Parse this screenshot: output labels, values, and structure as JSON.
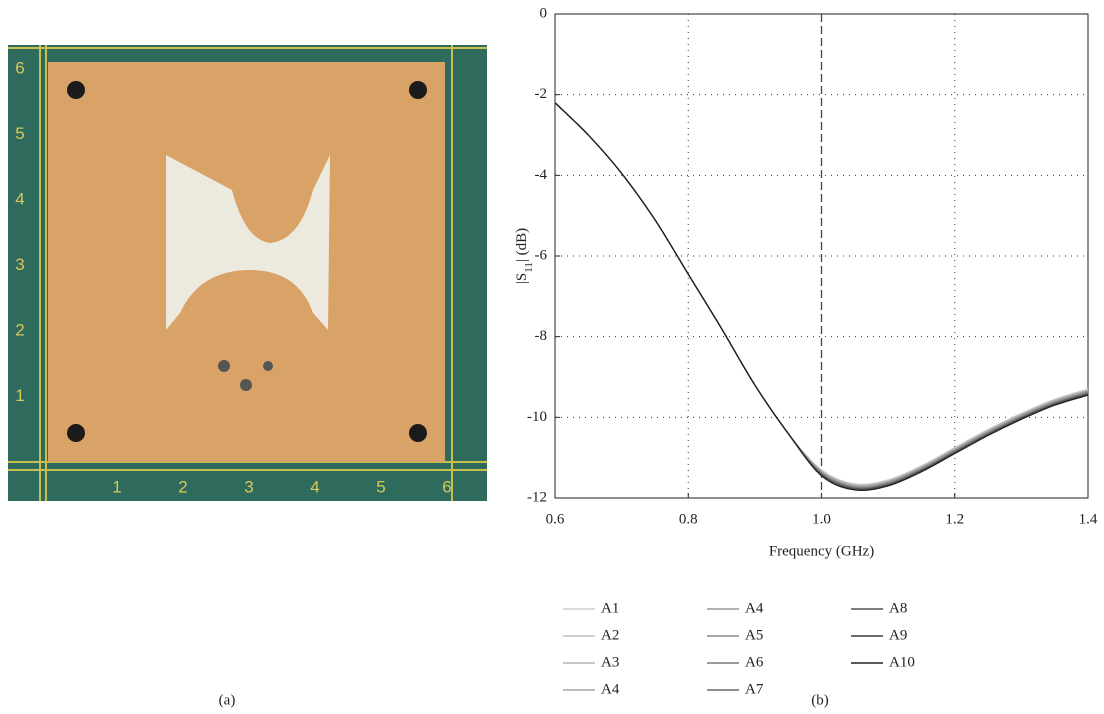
{
  "panel_a": {
    "caption": "(a)",
    "ruler_left": [
      "6",
      "5",
      "4",
      "3",
      "2",
      "1"
    ],
    "ruler_bottom": [
      "1",
      "2",
      "3",
      "4",
      "5",
      "6"
    ]
  },
  "chart_data": {
    "type": "line",
    "caption": "(b)",
    "xlabel": "Frequency (GHz)",
    "ylabel": [
      "|S",
      "11",
      "| (dB)"
    ],
    "x": [
      0.6,
      0.65,
      0.7,
      0.75,
      0.8,
      0.85,
      0.9,
      0.95,
      1.0,
      1.05,
      1.1,
      1.15,
      1.2,
      1.25,
      1.3,
      1.35,
      1.4
    ],
    "xlim": [
      0.6,
      1.4
    ],
    "ylim": [
      -12,
      0
    ],
    "xticks": [
      0.6,
      0.8,
      {
        "value": 1,
        "label": "1.0"
      },
      1.2,
      1.4
    ],
    "yticks": [
      0,
      -2,
      -4,
      -6,
      -8,
      -10,
      -12
    ],
    "grid": true,
    "vline": 1,
    "series": [
      {
        "name": "A1",
        "color": "#cfcfcf",
        "values": [
          -2.2,
          -3.0,
          -3.95,
          -5.1,
          -6.45,
          -7.8,
          -9.2,
          -10.4,
          -11.3,
          -11.65,
          -11.55,
          -11.2,
          -10.75,
          -10.3,
          -9.9,
          -9.55,
          -9.3
        ]
      },
      {
        "name": "A2",
        "color": "#c2c2c2",
        "values": [
          -2.2,
          -3.0,
          -3.95,
          -5.1,
          -6.45,
          -7.8,
          -9.2,
          -10.4,
          -11.32,
          -11.67,
          -11.57,
          -11.22,
          -10.77,
          -10.32,
          -9.92,
          -9.57,
          -9.32
        ]
      },
      {
        "name": "A3",
        "color": "#b4b4b4",
        "values": [
          -2.2,
          -3.0,
          -3.95,
          -5.1,
          -6.45,
          -7.8,
          -9.2,
          -10.4,
          -11.33,
          -11.68,
          -11.58,
          -11.23,
          -10.78,
          -10.33,
          -9.93,
          -9.58,
          -9.33
        ]
      },
      {
        "name": "A4",
        "color": "#a6a6a6",
        "values": [
          -2.2,
          -3.0,
          -3.95,
          -5.1,
          -6.45,
          -7.8,
          -9.2,
          -10.4,
          -11.35,
          -11.7,
          -11.6,
          -11.25,
          -10.8,
          -10.35,
          -9.95,
          -9.6,
          -9.35
        ]
      },
      {
        "name": "A4",
        "color": "#989898",
        "values": [
          -2.2,
          -3.0,
          -3.95,
          -5.1,
          -6.45,
          -7.8,
          -9.2,
          -10.4,
          -11.36,
          -11.71,
          -11.61,
          -11.26,
          -10.81,
          -10.36,
          -9.96,
          -9.61,
          -9.36
        ]
      },
      {
        "name": "A5",
        "color": "#8a8a8a",
        "values": [
          -2.2,
          -3.0,
          -3.95,
          -5.1,
          -6.45,
          -7.8,
          -9.2,
          -10.4,
          -11.38,
          -11.73,
          -11.63,
          -11.28,
          -10.83,
          -10.38,
          -9.98,
          -9.63,
          -9.38
        ]
      },
      {
        "name": "A6",
        "color": "#7a7a7a",
        "values": [
          -2.2,
          -3.0,
          -3.95,
          -5.1,
          -6.45,
          -7.8,
          -9.2,
          -10.4,
          -11.39,
          -11.74,
          -11.64,
          -11.29,
          -10.84,
          -10.39,
          -9.99,
          -9.64,
          -9.39
        ]
      },
      {
        "name": "A7",
        "color": "#6a6a6a",
        "values": [
          -2.2,
          -3.0,
          -3.95,
          -5.1,
          -6.45,
          -7.8,
          -9.2,
          -10.4,
          -11.41,
          -11.76,
          -11.66,
          -11.31,
          -10.86,
          -10.41,
          -10.01,
          -9.66,
          -9.41
        ]
      },
      {
        "name": "A8",
        "color": "#555555",
        "values": [
          -2.2,
          -3.0,
          -3.95,
          -5.1,
          -6.45,
          -7.8,
          -9.2,
          -10.4,
          -11.42,
          -11.77,
          -11.67,
          -11.32,
          -10.87,
          -10.42,
          -10.02,
          -9.67,
          -9.42
        ]
      },
      {
        "name": "A9",
        "color": "#3f3f3f",
        "values": [
          -2.2,
          -3.0,
          -3.95,
          -5.1,
          -6.45,
          -7.8,
          -9.2,
          -10.4,
          -11.44,
          -11.79,
          -11.69,
          -11.34,
          -10.89,
          -10.44,
          -10.04,
          -9.69,
          -9.44
        ]
      },
      {
        "name": "A10",
        "color": "#222222",
        "values": [
          -2.2,
          -3.0,
          -3.95,
          -5.1,
          -6.45,
          -7.8,
          -9.2,
          -10.4,
          -11.45,
          -11.8,
          -11.7,
          -11.35,
          -10.9,
          -10.45,
          -10.05,
          -9.7,
          -9.45
        ]
      }
    ]
  }
}
